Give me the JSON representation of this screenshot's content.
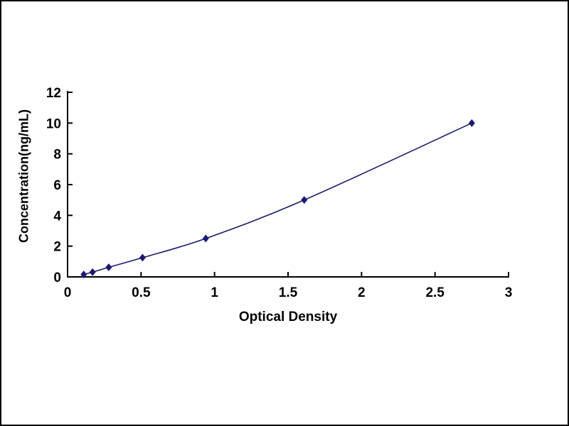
{
  "figure": {
    "background": "#ffffff",
    "border_color": "#000000"
  },
  "chart_data": {
    "type": "line",
    "title": "",
    "xlabel": "Optical Density",
    "ylabel": "Concentration(ng/mL)",
    "x": [
      0.11,
      0.17,
      0.28,
      0.51,
      0.94,
      1.61,
      2.75
    ],
    "y": [
      0.156,
      0.312,
      0.625,
      1.25,
      2.5,
      5,
      10
    ],
    "xlim": [
      0,
      3
    ],
    "ylim": [
      0,
      12
    ],
    "xticks": [
      0,
      0.5,
      1,
      1.5,
      2,
      2.5,
      3
    ],
    "yticks": [
      0,
      2,
      4,
      6,
      8,
      10,
      12
    ],
    "xtick_labels": [
      "0",
      "0.5",
      "1",
      "1.5",
      "2",
      "2.5",
      "3"
    ],
    "ytick_labels": [
      "0",
      "2",
      "4",
      "6",
      "8",
      "10",
      "12"
    ],
    "line_color": "#1a1a70",
    "marker": "diamond",
    "marker_color": "#1a1a70",
    "axis_color": "#000000",
    "tick_direction": "in",
    "grid": false,
    "legend": false
  }
}
